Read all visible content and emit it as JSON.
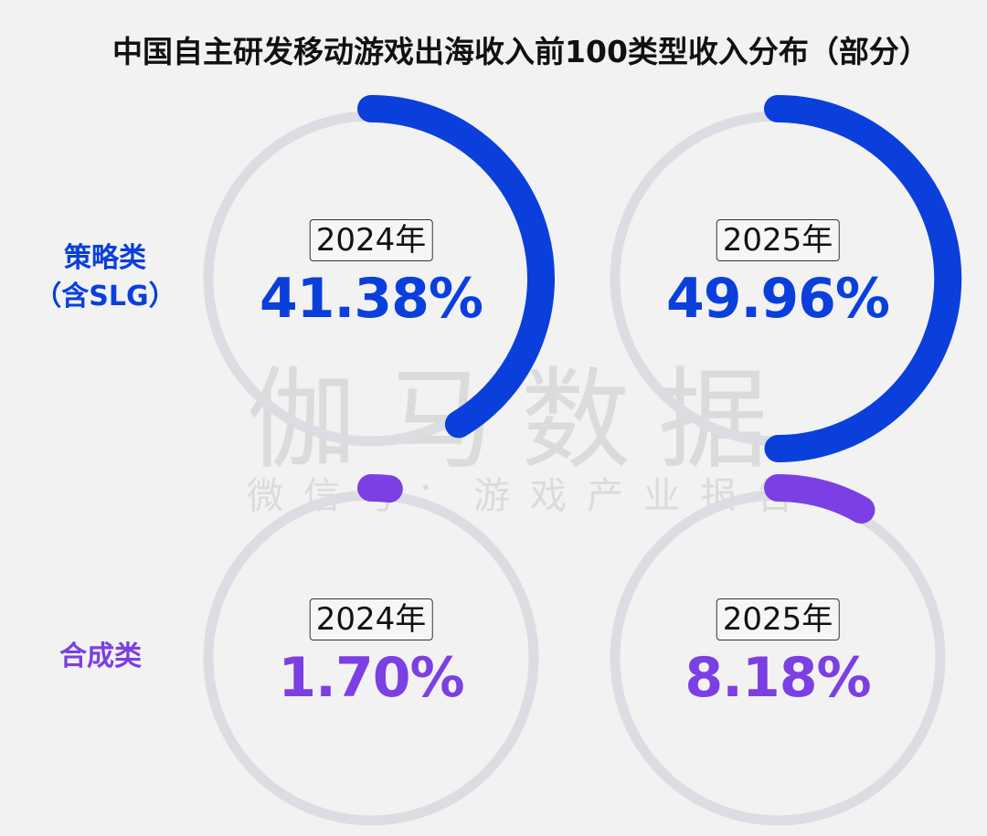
{
  "chart_data": {
    "type": "donut-progress",
    "title": "中国自主研发移动游戏出海收入前100类型收入分布（部分）",
    "unit": "%",
    "rows": [
      {
        "label": "策略类\n（含SLG）",
        "color": "#0a3fdc",
        "items": [
          {
            "year": "2024年",
            "value": 41.38,
            "text": "41.38%"
          },
          {
            "year": "2025年",
            "value": 49.96,
            "text": "49.96%"
          }
        ]
      },
      {
        "label": "合成类",
        "color": "#7b3fe4",
        "items": [
          {
            "year": "2024年",
            "value": 1.7,
            "text": "1.70%"
          },
          {
            "year": "2025年",
            "value": 8.18,
            "text": "8.18%"
          }
        ]
      }
    ],
    "track_color": "#dcdde2"
  },
  "watermark": {
    "brand": "伽马数据",
    "sub": "微信号：游戏产业报告"
  }
}
